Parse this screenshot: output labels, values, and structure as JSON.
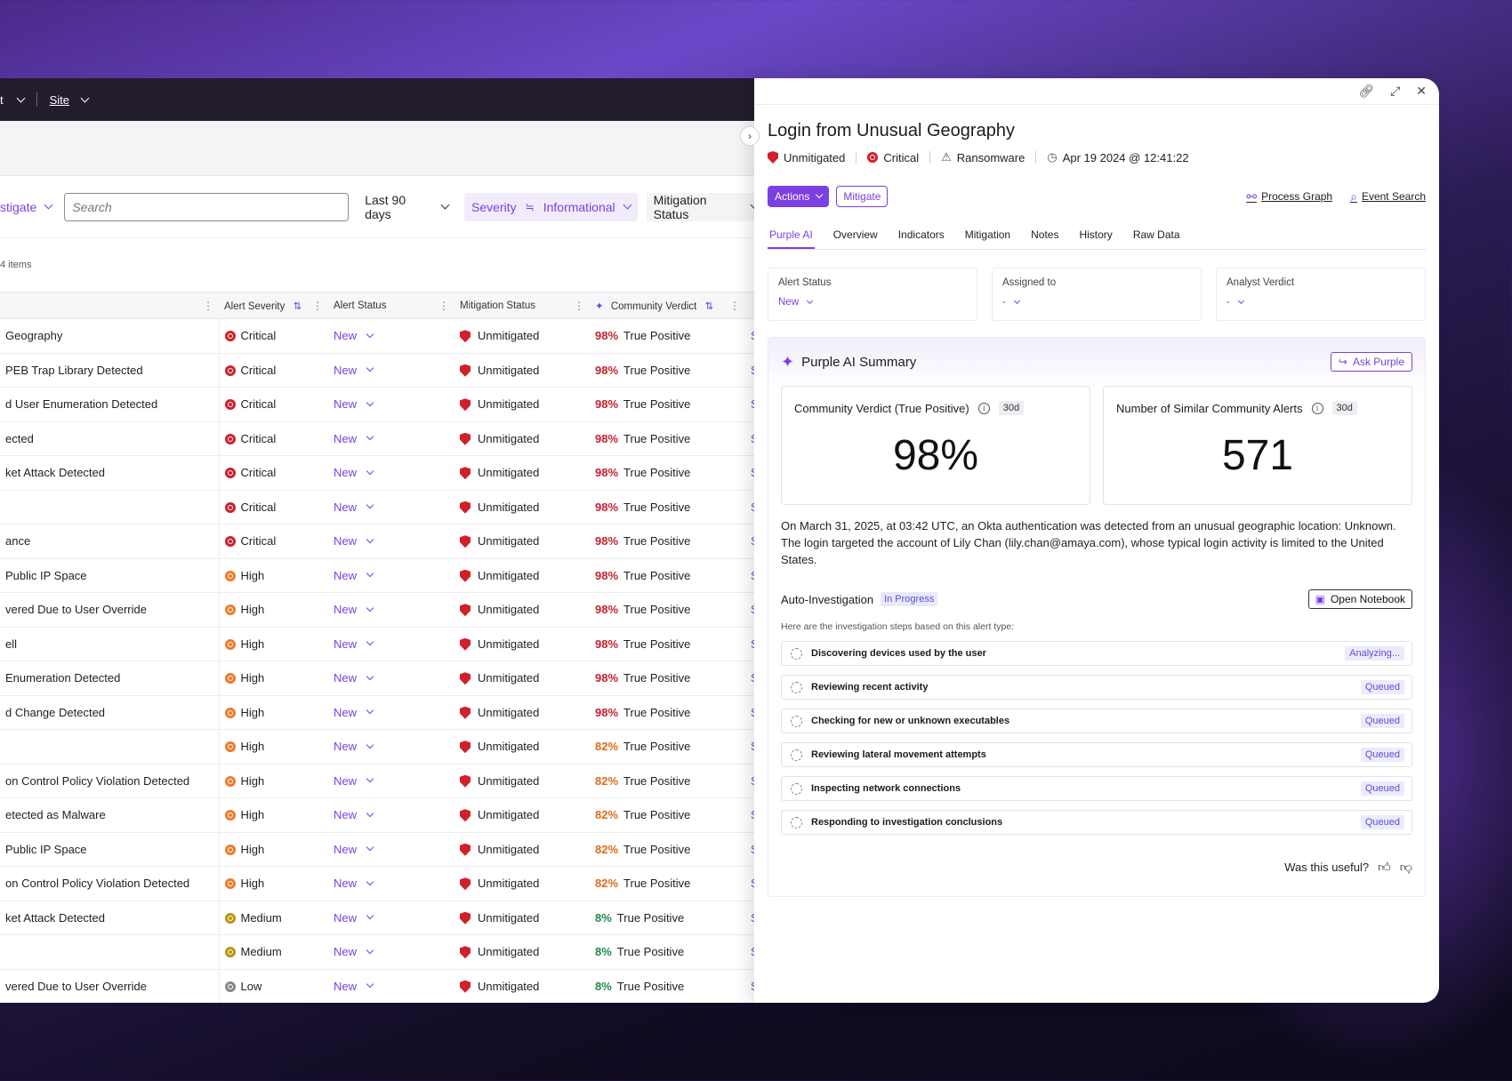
{
  "topbar": {
    "crumb_prefix": "t",
    "site_label": "Site"
  },
  "filters": {
    "investigate_label": "stigate",
    "search_placeholder": "Search",
    "date_range": "Last 90 days",
    "severity_label": "Severity",
    "severity_value": "Informational",
    "mitigation_label": "Mitigation Status"
  },
  "items_count": "4 items",
  "table": {
    "headers": {
      "severity": "Alert Severity",
      "status": "Alert Status",
      "mitigation": "Mitigation Status",
      "verdict": "Community Verdict"
    },
    "rows": [
      {
        "name": "Geography",
        "severity": "Critical",
        "status": "New",
        "mitigation": "Unmitigated",
        "pct": "98%",
        "verdict": "True Positive"
      },
      {
        "name": "PEB Trap Library Detected",
        "severity": "Critical",
        "status": "New",
        "mitigation": "Unmitigated",
        "pct": "98%",
        "verdict": "True Positive"
      },
      {
        "name": "d User Enumeration Detected",
        "severity": "Critical",
        "status": "New",
        "mitigation": "Unmitigated",
        "pct": "98%",
        "verdict": "True Positive"
      },
      {
        "name": "ected",
        "severity": "Critical",
        "status": "New",
        "mitigation": "Unmitigated",
        "pct": "98%",
        "verdict": "True Positive"
      },
      {
        "name": "ket Attack Detected",
        "severity": "Critical",
        "status": "New",
        "mitigation": "Unmitigated",
        "pct": "98%",
        "verdict": "True Positive"
      },
      {
        "name": "",
        "severity": "Critical",
        "status": "New",
        "mitigation": "Unmitigated",
        "pct": "98%",
        "verdict": "True Positive"
      },
      {
        "name": "ance",
        "severity": "Critical",
        "status": "New",
        "mitigation": "Unmitigated",
        "pct": "98%",
        "verdict": "True Positive"
      },
      {
        "name": "Public IP Space",
        "severity": "High",
        "status": "New",
        "mitigation": "Unmitigated",
        "pct": "98%",
        "verdict": "True Positive"
      },
      {
        "name": "vered Due to User Override",
        "severity": "High",
        "status": "New",
        "mitigation": "Unmitigated",
        "pct": "98%",
        "verdict": "True Positive"
      },
      {
        "name": "ell",
        "severity": "High",
        "status": "New",
        "mitigation": "Unmitigated",
        "pct": "98%",
        "verdict": "True Positive"
      },
      {
        "name": "Enumeration Detected",
        "severity": "High",
        "status": "New",
        "mitigation": "Unmitigated",
        "pct": "98%",
        "verdict": "True Positive"
      },
      {
        "name": "d Change Detected",
        "severity": "High",
        "status": "New",
        "mitigation": "Unmitigated",
        "pct": "98%",
        "verdict": "True Positive"
      },
      {
        "name": "",
        "severity": "High",
        "status": "New",
        "mitigation": "Unmitigated",
        "pct": "82%",
        "verdict": "True Positive"
      },
      {
        "name": "on Control Policy Violation Detected",
        "severity": "High",
        "status": "New",
        "mitigation": "Unmitigated",
        "pct": "82%",
        "verdict": "True Positive"
      },
      {
        "name": "etected as Malware",
        "severity": "High",
        "status": "New",
        "mitigation": "Unmitigated",
        "pct": "82%",
        "verdict": "True Positive"
      },
      {
        "name": "Public IP Space",
        "severity": "High",
        "status": "New",
        "mitigation": "Unmitigated",
        "pct": "82%",
        "verdict": "True Positive"
      },
      {
        "name": "on Control Policy Violation Detected",
        "severity": "High",
        "status": "New",
        "mitigation": "Unmitigated",
        "pct": "82%",
        "verdict": "True Positive"
      },
      {
        "name": "ket Attack Detected",
        "severity": "Medium",
        "status": "New",
        "mitigation": "Unmitigated",
        "pct": "8%",
        "verdict": "True Positive"
      },
      {
        "name": "",
        "severity": "Medium",
        "status": "New",
        "mitigation": "Unmitigated",
        "pct": "8%",
        "verdict": "True Positive"
      },
      {
        "name": "vered Due to User Override",
        "severity": "Low",
        "status": "New",
        "mitigation": "Unmitigated",
        "pct": "8%",
        "verdict": "True Positive"
      }
    ]
  },
  "colors": {
    "accent": "#7b3fe4",
    "critical": "#d21f2c",
    "high": "#f07a2a",
    "medium": "#b9960a",
    "low": "#888888",
    "pct_high": "#c8202c",
    "pct_mid": "#e06a1a",
    "pct_low": "#1e8a4a"
  },
  "drawer": {
    "title": "Login from Unusual Geography",
    "meta": {
      "mitigation": "Unmitigated",
      "severity": "Critical",
      "category": "Ransomware",
      "timestamp": "Apr 19 2024 @ 12:41:22"
    },
    "actions_label": "Actions",
    "mitigate_label": "Mitigate",
    "process_graph_label": "Process Graph",
    "event_search_label": "Event Search",
    "tabs": [
      "Purple AI",
      "Overview",
      "Indicators",
      "Mitigation",
      "Notes",
      "History",
      "Raw Data"
    ],
    "fields": {
      "alert_status_label": "Alert Status",
      "alert_status_value": "New",
      "assigned_label": "Assigned to",
      "assigned_value": "-",
      "verdict_label": "Analyst Verdict",
      "verdict_value": "-"
    },
    "summary": {
      "title": "Purple AI Summary",
      "ask_label": "Ask Purple",
      "stat1_label": "Community Verdict (True Positive)",
      "stat1_tag": "30d",
      "stat1_value": "98%",
      "stat2_label": "Number of Similar Community Alerts",
      "stat2_tag": "30d",
      "stat2_value": "571",
      "description": "On March 31, 2025, at 03:42 UTC, an Okta authentication was detected from an unusual geographic location: Unknown. The login targeted the account of Lily Chan (lily.chan@amaya.com), whose typical login activity is limited to the United States.",
      "auto_title": "Auto-Investigation",
      "auto_status": "In Progress",
      "notebook_label": "Open Notebook",
      "steps_intro": "Here are the investigation steps based on this alert type:",
      "steps": [
        {
          "label": "Discovering devices used by the user",
          "status": "Analyzing..."
        },
        {
          "label": "Reviewing recent activity",
          "status": "Queued"
        },
        {
          "label": "Checking for new or unknown executables",
          "status": "Queued"
        },
        {
          "label": "Reviewing lateral movement attempts",
          "status": "Queued"
        },
        {
          "label": "Inspecting network connections",
          "status": "Queued"
        },
        {
          "label": "Responding to investigation conclusions",
          "status": "Queued"
        }
      ],
      "useful_label": "Was this useful?"
    }
  }
}
